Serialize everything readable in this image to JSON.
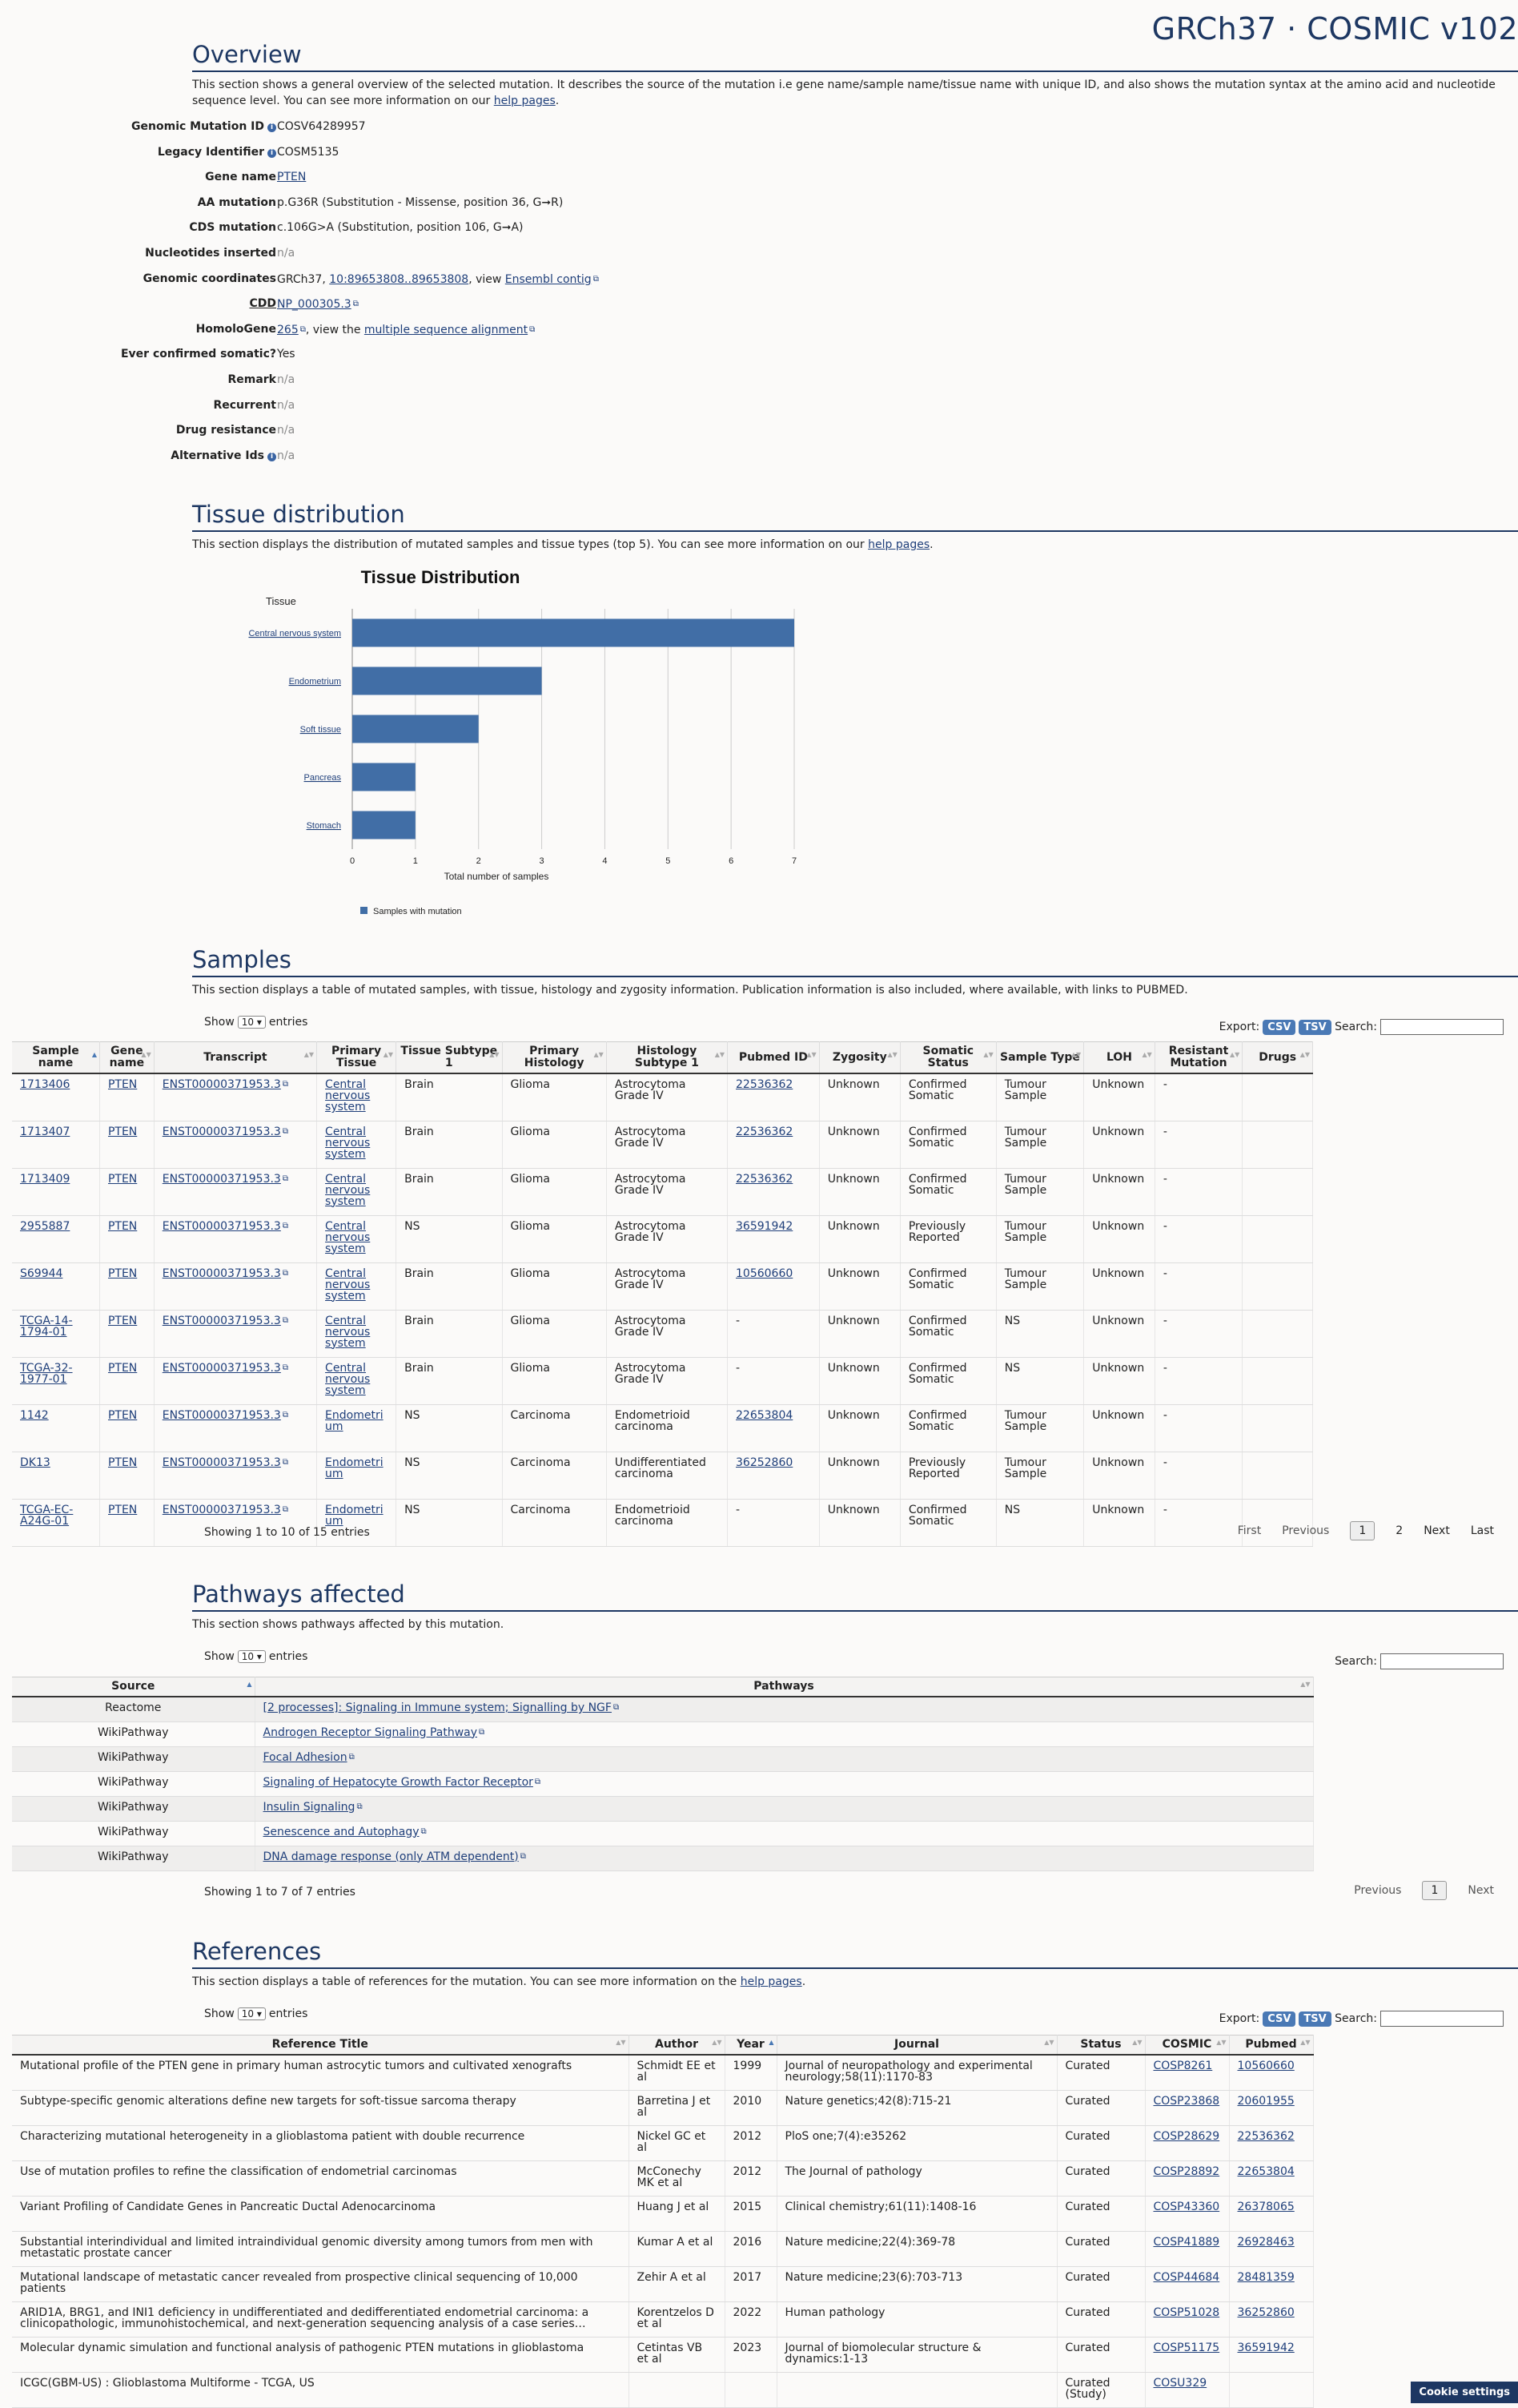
{
  "brand": "GRCh37 · COSMIC v102",
  "overview": {
    "title": "Overview",
    "desc": "This section shows a general overview of the selected mutation. It describes the source of the mutation i.e gene name/sample name/tissue name with unique ID, and also shows the mutation syntax at the amino acid and nucleotide sequence level. You can see more information on our ",
    "help_link": "help pages",
    "genomic_mutation_id_label": "Genomic Mutation ID",
    "genomic_mutation_id": "COSV64289957",
    "legacy_identifier_label": "Legacy Identifier",
    "legacy_identifier": "COSM5135",
    "gene_name_label": "Gene name",
    "gene_name": "PTEN",
    "aa_mutation_label": "AA mutation",
    "aa_mutation": "p.G36R (Substitution - Missense, position 36, G➞R)",
    "cds_mutation_label": "CDS mutation",
    "cds_mutation": "c.106G>A (Substitution, position 106, G➞A)",
    "nucleotides_inserted_label": "Nucleotides inserted",
    "nucleotides_inserted": "n/a",
    "genomic_coordinates_label": "Genomic coordinates",
    "genomic_coordinates_prefix": "GRCh37, ",
    "genomic_coordinates_link": "10:89653808..89653808",
    "genomic_coordinates_mid": ", view ",
    "ensembl_link": "Ensembl contig",
    "cdd_label": "CDD",
    "cdd": "NP_000305.3",
    "homologene_label": "HomoloGene",
    "homologene": "265",
    "homologene_mid": ", view the ",
    "msa_link": "multiple sequence alignment",
    "ever_confirmed_label": "Ever confirmed somatic?",
    "ever_confirmed": "Yes",
    "remark_label": "Remark",
    "remark": "n/a",
    "recurrent_label": "Recurrent",
    "recurrent": "n/a",
    "drug_resistance_label": "Drug resistance",
    "drug_resistance": "n/a",
    "alternative_ids_label": "Alternative Ids",
    "alternative_ids": "n/a"
  },
  "tissue": {
    "title": "Tissue distribution",
    "desc": "This section displays the distribution of mutated samples and tissue types (top 5). You can see more information on our ",
    "help_link": "help pages"
  },
  "chart_data": {
    "type": "bar",
    "orientation": "horizontal",
    "title": "Tissue Distribution",
    "ylabel": "Tissue",
    "xlabel": "Total number of samples",
    "categories": [
      "Central nervous system",
      "Endometrium",
      "Soft tissue",
      "Pancreas",
      "Stomach"
    ],
    "series": [
      {
        "name": "Samples with mutation",
        "values": [
          7,
          3,
          2,
          1,
          1
        ]
      }
    ],
    "xlim": [
      0,
      7
    ],
    "xticks": [
      "0",
      "1",
      "2",
      "3",
      "4",
      "5",
      "6",
      "7"
    ],
    "grid": true,
    "legend": "bottom-left",
    "color": "#416ea6"
  },
  "samples": {
    "title": "Samples",
    "desc": "This section displays a table of mutated samples, with tissue, histology and zygosity information. Publication information is also included, where available, with links to PUBMED.",
    "show": "Show",
    "entries_select": "10",
    "entries": "entries",
    "export": "Export:",
    "csv": "CSV",
    "tsv": "TSV",
    "search": "Search:",
    "headers": [
      "Sample name",
      "Gene name",
      "Transcript",
      "Primary Tissue",
      "Tissue Subtype 1",
      "Primary Histology",
      "Histology Subtype 1",
      "Pubmed ID",
      "Zygosity",
      "Somatic Status",
      "Sample Type",
      "LOH",
      "Resistant Mutation",
      "Drugs"
    ],
    "rows": [
      [
        "1713406",
        "PTEN",
        "ENST00000371953.3",
        "Central nervous system",
        "Brain",
        "Glioma",
        "Astrocytoma Grade IV",
        "22536362",
        "Unknown",
        "Confirmed Somatic",
        "Tumour Sample",
        "Unknown",
        "-",
        ""
      ],
      [
        "1713407",
        "PTEN",
        "ENST00000371953.3",
        "Central nervous system",
        "Brain",
        "Glioma",
        "Astrocytoma Grade IV",
        "22536362",
        "Unknown",
        "Confirmed Somatic",
        "Tumour Sample",
        "Unknown",
        "-",
        ""
      ],
      [
        "1713409",
        "PTEN",
        "ENST00000371953.3",
        "Central nervous system",
        "Brain",
        "Glioma",
        "Astrocytoma Grade IV",
        "22536362",
        "Unknown",
        "Confirmed Somatic",
        "Tumour Sample",
        "Unknown",
        "-",
        ""
      ],
      [
        "2955887",
        "PTEN",
        "ENST00000371953.3",
        "Central nervous system",
        "NS",
        "Glioma",
        "Astrocytoma Grade IV",
        "36591942",
        "Unknown",
        "Previously Reported",
        "Tumour Sample",
        "Unknown",
        "-",
        ""
      ],
      [
        "S69944",
        "PTEN",
        "ENST00000371953.3",
        "Central nervous system",
        "Brain",
        "Glioma",
        "Astrocytoma Grade IV",
        "10560660",
        "Unknown",
        "Confirmed Somatic",
        "Tumour Sample",
        "Unknown",
        "-",
        ""
      ],
      [
        "TCGA-14-1794-01",
        "PTEN",
        "ENST00000371953.3",
        "Central nervous system",
        "Brain",
        "Glioma",
        "Astrocytoma Grade IV",
        "-",
        "Unknown",
        "Confirmed Somatic",
        "NS",
        "Unknown",
        "-",
        ""
      ],
      [
        "TCGA-32-1977-01",
        "PTEN",
        "ENST00000371953.3",
        "Central nervous system",
        "Brain",
        "Glioma",
        "Astrocytoma Grade IV",
        "-",
        "Unknown",
        "Confirmed Somatic",
        "NS",
        "Unknown",
        "-",
        ""
      ],
      [
        "1142",
        "PTEN",
        "ENST00000371953.3",
        "Endometrium",
        "NS",
        "Carcinoma",
        "Endometrioid carcinoma",
        "22653804",
        "Unknown",
        "Confirmed Somatic",
        "Tumour Sample",
        "Unknown",
        "-",
        ""
      ],
      [
        "DK13",
        "PTEN",
        "ENST00000371953.3",
        "Endometrium",
        "NS",
        "Carcinoma",
        "Undifferentiated carcinoma",
        "36252860",
        "Unknown",
        "Previously Reported",
        "Tumour Sample",
        "Unknown",
        "-",
        ""
      ],
      [
        "TCGA-EC-A24G-01",
        "PTEN",
        "ENST00000371953.3",
        "Endometrium",
        "NS",
        "Carcinoma",
        "Endometrioid carcinoma",
        "-",
        "Unknown",
        "Confirmed Somatic",
        "NS",
        "Unknown",
        "-",
        ""
      ]
    ],
    "footer": "Showing 1 to 10 of 15 entries",
    "pager": {
      "first": "First",
      "previous": "Previous",
      "p1": "1",
      "p2": "2",
      "next": "Next",
      "last": "Last"
    }
  },
  "pathways": {
    "title": "Pathways affected",
    "desc": "This section shows pathways affected by this mutation.",
    "show": "Show",
    "entries_select": "10",
    "entries": "entries",
    "search": "Search:",
    "headers": [
      "Source",
      "Pathways"
    ],
    "rows": [
      [
        "Reactome",
        "[2 processes]: Signaling in Immune system; Signalling by NGF"
      ],
      [
        "WikiPathway",
        "Androgen Receptor Signaling Pathway"
      ],
      [
        "WikiPathway",
        "Focal Adhesion"
      ],
      [
        "WikiPathway",
        "Signaling of Hepatocyte Growth Factor Receptor"
      ],
      [
        "WikiPathway",
        "Insulin Signaling"
      ],
      [
        "WikiPathway",
        "Senescence and Autophagy"
      ],
      [
        "WikiPathway",
        "DNA damage response (only ATM dependent)"
      ]
    ],
    "footer": "Showing 1 to 7 of 7 entries",
    "pager": {
      "previous": "Previous",
      "p1": "1",
      "next": "Next"
    }
  },
  "references": {
    "title": "References",
    "desc": "This section displays a table of references for the mutation. You can see more information on the ",
    "help_link": "help pages",
    "show": "Show",
    "entries_select": "10",
    "entries": "entries",
    "export": "Export:",
    "csv": "CSV",
    "tsv": "TSV",
    "search": "Search:",
    "headers": [
      "Reference Title",
      "Author",
      "Year",
      "Journal",
      "Status",
      "COSMIC",
      "Pubmed"
    ],
    "rows": [
      [
        "Mutational profile of the PTEN gene in primary human astrocytic tumors and cultivated xenografts",
        "Schmidt EE et al",
        "1999",
        "Journal of neuropathology and experimental neurology;58(11):1170-83",
        "Curated",
        "COSP8261",
        "10560660"
      ],
      [
        "Subtype-specific genomic alterations define new targets for soft-tissue sarcoma therapy",
        "Barretina J et al",
        "2010",
        "Nature genetics;42(8):715-21",
        "Curated",
        "COSP23868",
        "20601955"
      ],
      [
        "Characterizing mutational heterogeneity in a glioblastoma patient with double recurrence",
        "Nickel GC et al",
        "2012",
        "PloS one;7(4):e35262",
        "Curated",
        "COSP28629",
        "22536362"
      ],
      [
        "Use of mutation profiles to refine the classification of endometrial carcinomas",
        "McConechy MK et al",
        "2012",
        "The Journal of pathology",
        "Curated",
        "COSP28892",
        "22653804"
      ],
      [
        "Variant Profiling of Candidate Genes in Pancreatic Ductal Adenocarcinoma",
        "Huang J et al",
        "2015",
        "Clinical chemistry;61(11):1408-16",
        "Curated",
        "COSP43360",
        "26378065"
      ],
      [
        "Substantial interindividual and limited intraindividual genomic diversity among tumors from men with metastatic prostate cancer",
        "Kumar A et al",
        "2016",
        "Nature medicine;22(4):369-78",
        "Curated",
        "COSP41889",
        "26928463"
      ],
      [
        "Mutational landscape of metastatic cancer revealed from prospective clinical sequencing of 10,000 patients",
        "Zehir A et al",
        "2017",
        "Nature medicine;23(6):703-713",
        "Curated",
        "COSP44684",
        "28481359"
      ],
      [
        "ARID1A, BRG1, and INI1 deficiency in undifferentiated and dedifferentiated endometrial carcinoma: a clinicopathologic, immunohistochemical, and next-generation sequencing analysis of a case series…",
        "Korentzelos D et al",
        "2022",
        "Human pathology",
        "Curated",
        "COSP51028",
        "36252860"
      ],
      [
        "Molecular dynamic simulation and functional analysis of pathogenic PTEN mutations in glioblastoma",
        "Cetintas VB et al",
        "2023",
        "Journal of biomolecular structure & dynamics:1-13",
        "Curated",
        "COSP51175",
        "36591942"
      ],
      [
        "ICGC(GBM-US) : Glioblastoma Multiforme - TCGA, US",
        "",
        "",
        "",
        "Curated (Study)",
        "COSU329",
        ""
      ]
    ]
  },
  "cookie": "Cookie settings"
}
